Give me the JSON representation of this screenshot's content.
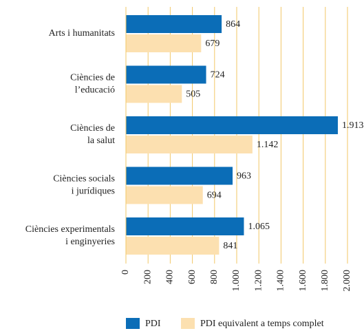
{
  "chart_data": {
    "type": "bar",
    "orientation": "horizontal",
    "categories": [
      [
        "Arts i humanitats"
      ],
      [
        "Ciències de",
        "l’educació"
      ],
      [
        "Ciències de",
        "la salut"
      ],
      [
        "Ciències socials",
        "i jurídiques"
      ],
      [
        "Ciències experimentals",
        "i enginyeries"
      ]
    ],
    "series": [
      {
        "name": "PDI",
        "color": "#0b6db7",
        "values": [
          864,
          724,
          1913,
          963,
          1065
        ],
        "value_labels": [
          "864",
          "724",
          "1.913",
          "963",
          "1.065"
        ]
      },
      {
        "name": "PDI equivalent a temps complet",
        "color": "#fce0b0",
        "values": [
          679,
          505,
          1142,
          694,
          841
        ],
        "value_labels": [
          "679",
          "505",
          "1.142",
          "694",
          "841"
        ]
      }
    ],
    "xlim": [
      0,
      2000
    ],
    "xticks": [
      0,
      200,
      400,
      600,
      800,
      {
        "value": 1000,
        "label": "1.000"
      },
      {
        "value": 1200,
        "label": "1.200"
      },
      {
        "value": 1400,
        "label": "1.400"
      },
      {
        "value": 1600,
        "label": "1.600"
      },
      {
        "value": 1800,
        "label": "1.800"
      },
      {
        "value": 2000,
        "label": "2.000"
      }
    ],
    "grid": true,
    "grid_color": "#f2c766"
  }
}
